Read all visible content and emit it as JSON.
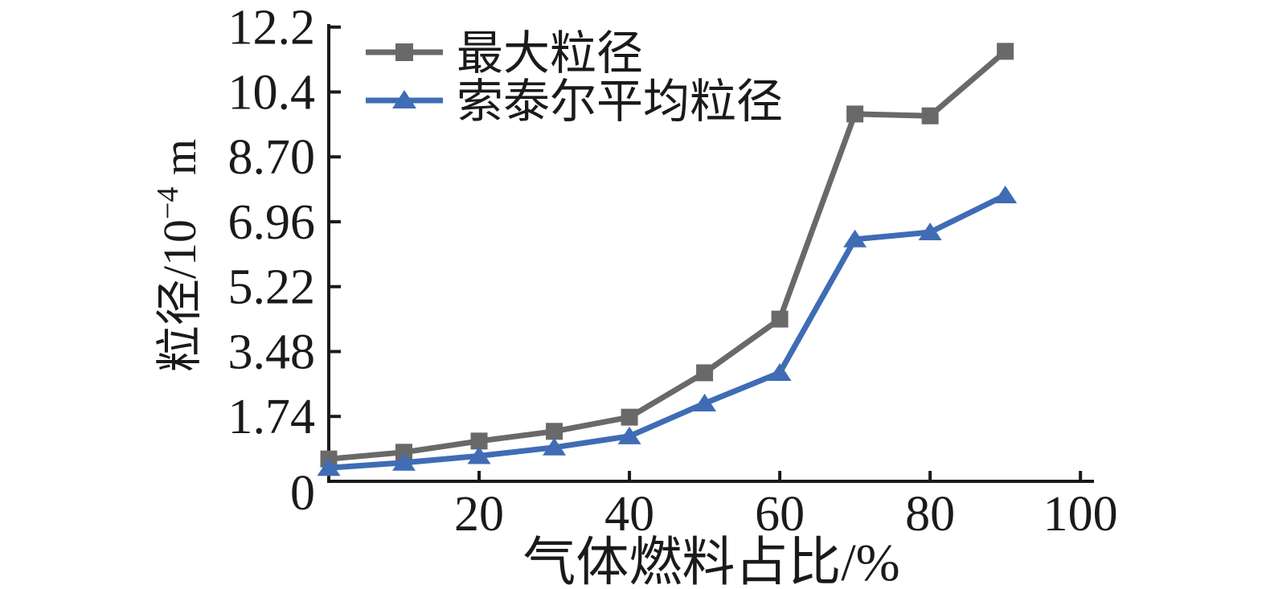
{
  "figure": {
    "background": "#ffffff",
    "axis_color": "#1a1a1a"
  },
  "chart_data": {
    "type": "line",
    "title": "",
    "xlabel": "气体燃料占比/%",
    "ylabel": "粒径/10⁻⁴ m",
    "ylabel_parts": {
      "base": "粒径/10",
      "sup": "−4",
      "unit": " m"
    },
    "x": [
      0,
      10,
      20,
      30,
      40,
      50,
      60,
      70,
      80,
      90
    ],
    "series": [
      {
        "name": "最大粒径",
        "marker": "square",
        "color": "#696969",
        "values": [
          0.6,
          0.78,
          1.08,
          1.34,
          1.72,
          2.91,
          4.35,
          9.85,
          9.8,
          11.53
        ]
      },
      {
        "name": "索泰尔平均粒径",
        "marker": "triangle-up",
        "color": "#3f6cb5",
        "values": [
          0.36,
          0.5,
          0.68,
          0.91,
          1.21,
          2.09,
          2.91,
          6.49,
          6.68,
          7.67
        ]
      }
    ],
    "x_ticks": [
      {
        "v": 20,
        "label": "20"
      },
      {
        "v": 40,
        "label": "40"
      },
      {
        "v": 60,
        "label": "60"
      },
      {
        "v": 80,
        "label": "80"
      },
      {
        "v": 100,
        "label": "100"
      }
    ],
    "y_ticks": [
      {
        "v": 0,
        "label": "0"
      },
      {
        "v": 1.74,
        "label": "1.74"
      },
      {
        "v": 3.48,
        "label": "3.48"
      },
      {
        "v": 5.22,
        "label": "5.22"
      },
      {
        "v": 6.96,
        "label": "6.96"
      },
      {
        "v": 8.7,
        "label": "8.70"
      },
      {
        "v": 10.44,
        "label": "10.4"
      },
      {
        "v": 12.18,
        "label": "12.2"
      }
    ],
    "xlim": [
      0,
      101.8
    ],
    "ylim": [
      0,
      12.26
    ],
    "grid": false,
    "legend_position": "top-left-inside"
  }
}
